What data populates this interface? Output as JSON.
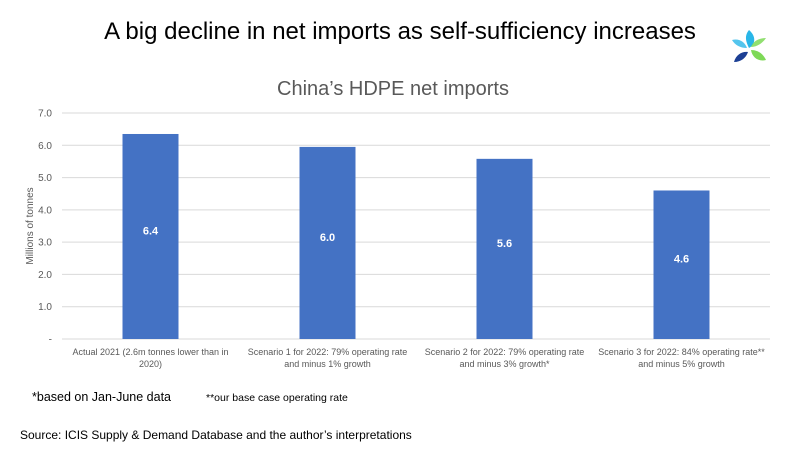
{
  "slide": {
    "title": "A big decline in net imports as self-sufficiency increases",
    "footnote_1": "*based on Jan-June data",
    "footnote_2": "**our base case operating rate",
    "source": "Source: ICIS Supply & Demand Database and the author’s interpretations"
  },
  "logo": {
    "icon": "icis-logo-icon",
    "colors": [
      "#29b6e8",
      "#7ed957",
      "#1c3f94"
    ]
  },
  "chart_data": {
    "type": "bar",
    "title": "China’s HDPE net imports",
    "ylabel": "Millions of tonnes",
    "xlabel": "",
    "ylim": [
      0,
      7
    ],
    "yticks": [
      0,
      1,
      2,
      3,
      4,
      5,
      6,
      7
    ],
    "ytick_labels": [
      "-",
      "1.0",
      "2.0",
      "3.0",
      "4.0",
      "5.0",
      "6.0",
      "7.0"
    ],
    "grid": true,
    "bar_color": "#4472c4",
    "categories": [
      [
        "Actual 2021 (2.6m tonnes lower than in",
        "2020)"
      ],
      [
        "Scenario 1 for 2022: 79% operating rate",
        "and minus 1% growth"
      ],
      [
        "Scenario 2 for 2022: 79% operating rate",
        "and minus 3% growth*"
      ],
      [
        "Scenario 3 for 2022: 84% operating rate**",
        "and minus 5% growth"
      ]
    ],
    "values": [
      6.35,
      5.95,
      5.58,
      4.6
    ],
    "data_labels": [
      "6.4",
      "6.0",
      "5.6",
      "4.6"
    ]
  }
}
